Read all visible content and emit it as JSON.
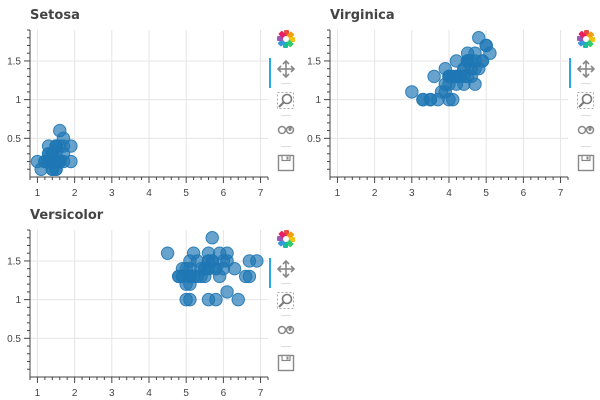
{
  "colors": {
    "marker": "#1f77b4",
    "grid": "#e5e5e5",
    "axis": "#444444",
    "active": "#26aae1"
  },
  "toolbar": {
    "tools": [
      {
        "name": "bokeh-logo",
        "icon": "bokeh-logo-icon"
      },
      {
        "name": "pan",
        "icon": "pan-move-icon",
        "active": true
      },
      {
        "name": "box-zoom",
        "icon": "box-zoom-icon"
      },
      {
        "name": "wheel-zoom",
        "icon": "wheel-zoom-icon"
      },
      {
        "name": "save",
        "icon": "save-icon"
      }
    ]
  },
  "chart_data": [
    {
      "type": "scatter",
      "title": "Setosa",
      "xlim": [
        0.8,
        7.2
      ],
      "ylim": [
        0,
        1.9
      ],
      "xticks": [
        "1",
        "2",
        "3",
        "4",
        "5",
        "6",
        "7"
      ],
      "yticks": [
        "0.5",
        "1",
        "1.5"
      ],
      "points": [
        [
          1.4,
          0.2
        ],
        [
          1.4,
          0.2
        ],
        [
          1.3,
          0.2
        ],
        [
          1.5,
          0.2
        ],
        [
          1.4,
          0.2
        ],
        [
          1.7,
          0.4
        ],
        [
          1.4,
          0.3
        ],
        [
          1.5,
          0.2
        ],
        [
          1.4,
          0.2
        ],
        [
          1.5,
          0.1
        ],
        [
          1.5,
          0.2
        ],
        [
          1.6,
          0.2
        ],
        [
          1.4,
          0.1
        ],
        [
          1.1,
          0.1
        ],
        [
          1.2,
          0.2
        ],
        [
          1.5,
          0.4
        ],
        [
          1.3,
          0.4
        ],
        [
          1.4,
          0.3
        ],
        [
          1.7,
          0.3
        ],
        [
          1.5,
          0.3
        ],
        [
          1.7,
          0.2
        ],
        [
          1.5,
          0.4
        ],
        [
          1.0,
          0.2
        ],
        [
          1.7,
          0.5
        ],
        [
          1.9,
          0.2
        ],
        [
          1.6,
          0.2
        ],
        [
          1.6,
          0.4
        ],
        [
          1.5,
          0.2
        ],
        [
          1.4,
          0.2
        ],
        [
          1.6,
          0.2
        ],
        [
          1.6,
          0.2
        ],
        [
          1.5,
          0.4
        ],
        [
          1.5,
          0.1
        ],
        [
          1.4,
          0.2
        ],
        [
          1.5,
          0.2
        ],
        [
          1.2,
          0.2
        ],
        [
          1.3,
          0.2
        ],
        [
          1.4,
          0.1
        ],
        [
          1.3,
          0.2
        ],
        [
          1.5,
          0.2
        ],
        [
          1.3,
          0.3
        ],
        [
          1.3,
          0.3
        ],
        [
          1.3,
          0.2
        ],
        [
          1.6,
          0.6
        ],
        [
          1.9,
          0.4
        ],
        [
          1.4,
          0.3
        ],
        [
          1.6,
          0.2
        ],
        [
          1.4,
          0.2
        ],
        [
          1.5,
          0.2
        ],
        [
          1.4,
          0.2
        ]
      ]
    },
    {
      "type": "scatter",
      "title": "Virginica",
      "xlim": [
        0.8,
        7.2
      ],
      "ylim": [
        0,
        1.9
      ],
      "xticks": [
        "1",
        "2",
        "3",
        "4",
        "5",
        "6",
        "7"
      ],
      "yticks": [
        "0.5",
        "1",
        "1.5"
      ],
      "points": [
        [
          5.0,
          1.7
        ],
        [
          4.5,
          1.5
        ],
        [
          4.9,
          1.5
        ],
        [
          4.0,
          1.3
        ],
        [
          4.6,
          1.5
        ],
        [
          4.5,
          1.3
        ],
        [
          4.7,
          1.6
        ],
        [
          3.3,
          1.0
        ],
        [
          4.6,
          1.3
        ],
        [
          3.9,
          1.4
        ],
        [
          3.5,
          1.0
        ],
        [
          4.2,
          1.5
        ],
        [
          4.0,
          1.0
        ],
        [
          4.7,
          1.4
        ],
        [
          3.6,
          1.3
        ],
        [
          4.4,
          1.4
        ],
        [
          4.5,
          1.5
        ],
        [
          4.1,
          1.0
        ],
        [
          4.5,
          1.5
        ],
        [
          3.9,
          1.1
        ],
        [
          4.8,
          1.8
        ],
        [
          4.0,
          1.3
        ],
        [
          4.9,
          1.5
        ],
        [
          4.7,
          1.2
        ],
        [
          4.3,
          1.3
        ],
        [
          4.4,
          1.4
        ],
        [
          4.8,
          1.4
        ],
        [
          5.0,
          1.7
        ],
        [
          4.5,
          1.5
        ],
        [
          3.5,
          1.0
        ],
        [
          3.8,
          1.1
        ],
        [
          3.7,
          1.0
        ],
        [
          3.9,
          1.2
        ],
        [
          5.1,
          1.6
        ],
        [
          4.5,
          1.5
        ],
        [
          4.5,
          1.6
        ],
        [
          4.7,
          1.5
        ],
        [
          4.4,
          1.3
        ],
        [
          4.1,
          1.3
        ],
        [
          4.0,
          1.3
        ],
        [
          4.4,
          1.2
        ],
        [
          4.6,
          1.4
        ],
        [
          4.0,
          1.2
        ],
        [
          3.3,
          1.0
        ],
        [
          4.2,
          1.3
        ],
        [
          4.2,
          1.2
        ],
        [
          4.2,
          1.3
        ],
        [
          4.3,
          1.3
        ],
        [
          3.0,
          1.1
        ],
        [
          4.1,
          1.3
        ]
      ]
    },
    {
      "type": "scatter",
      "title": "Versicolor",
      "xlim": [
        0.8,
        7.2
      ],
      "ylim": [
        0,
        1.9
      ],
      "xticks": [
        "1",
        "2",
        "3",
        "4",
        "5",
        "6",
        "7"
      ],
      "yticks": [
        "0.5",
        "1",
        "1.5"
      ],
      "points": [
        [
          6.0,
          1.5
        ],
        [
          5.1,
          1.5
        ],
        [
          5.9,
          1.3
        ],
        [
          5.6,
          1.5
        ],
        [
          5.8,
          1.4
        ],
        [
          6.6,
          1.3
        ],
        [
          4.5,
          1.6
        ],
        [
          6.3,
          1.4
        ],
        [
          5.8,
          1.4
        ],
        [
          6.1,
          1.5
        ],
        [
          5.1,
          1.3
        ],
        [
          5.3,
          1.3
        ],
        [
          5.5,
          1.4
        ],
        [
          5.0,
          1.4
        ],
        [
          5.1,
          1.3
        ],
        [
          5.3,
          1.5
        ],
        [
          5.5,
          1.4
        ],
        [
          6.7,
          1.5
        ],
        [
          6.9,
          1.5
        ],
        [
          5.0,
          1.0
        ],
        [
          5.7,
          1.5
        ],
        [
          4.9,
          1.4
        ],
        [
          6.7,
          1.3
        ],
        [
          4.9,
          1.3
        ],
        [
          5.7,
          1.5
        ],
        [
          6.0,
          1.4
        ],
        [
          4.8,
          1.3
        ],
        [
          4.9,
          1.3
        ],
        [
          5.6,
          1.4
        ],
        [
          5.8,
          1.0
        ],
        [
          6.1,
          1.1
        ],
        [
          6.4,
          1.0
        ],
        [
          5.6,
          1.5
        ],
        [
          5.1,
          1.0
        ],
        [
          5.6,
          1.0
        ],
        [
          6.1,
          1.6
        ],
        [
          5.6,
          1.6
        ],
        [
          5.5,
          1.3
        ],
        [
          4.8,
          1.3
        ],
        [
          5.4,
          1.4
        ],
        [
          5.6,
          1.4
        ],
        [
          5.1,
          1.4
        ],
        [
          5.1,
          1.2
        ],
        [
          5.9,
          1.6
        ],
        [
          5.7,
          1.8
        ],
        [
          5.2,
          1.6
        ],
        [
          5.0,
          1.2
        ],
        [
          5.2,
          1.3
        ],
        [
          5.4,
          1.3
        ],
        [
          5.1,
          1.3
        ]
      ]
    }
  ]
}
